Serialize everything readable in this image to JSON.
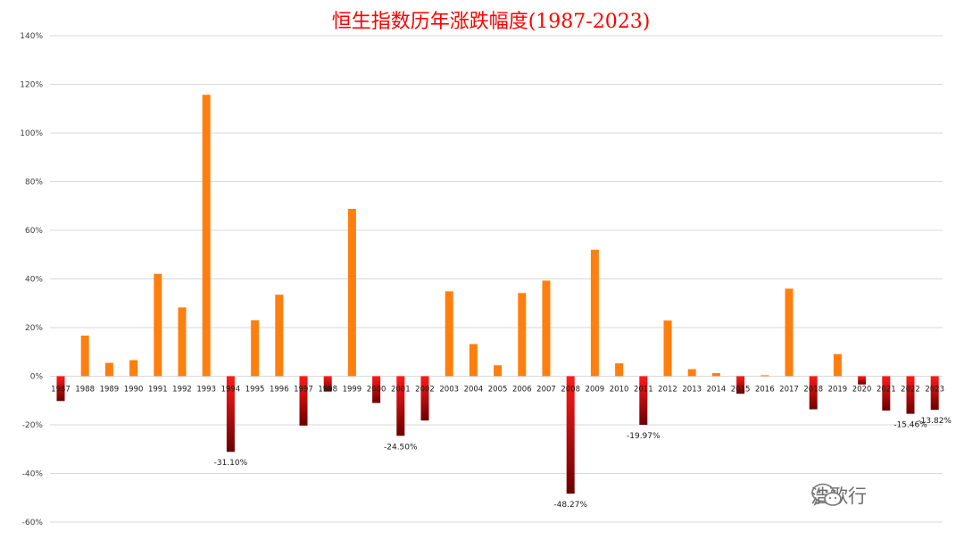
{
  "chart_data": {
    "type": "bar",
    "title": "恒生指数历年涨跌幅度(1987-2023)",
    "xlabel": "",
    "ylabel": "",
    "ylim": [
      -60,
      140
    ],
    "yticks": [
      140,
      120,
      100,
      80,
      60,
      40,
      20,
      0,
      -20,
      -40,
      -60
    ],
    "ytick_labels": [
      "140%",
      "120%",
      "100%",
      "80%",
      "60%",
      "40%",
      "20%",
      "0%",
      "-20%",
      "-40%",
      "-60%"
    ],
    "grid": true,
    "legend": "none",
    "categories": [
      "1987",
      "1988",
      "1989",
      "1990",
      "1991",
      "1992",
      "1993",
      "1994",
      "1995",
      "1996",
      "1997",
      "1998",
      "1999",
      "2000",
      "2001",
      "2002",
      "2003",
      "2004",
      "2005",
      "2006",
      "2007",
      "2008",
      "2009",
      "2010",
      "2011",
      "2012",
      "2013",
      "2014",
      "2015",
      "2016",
      "2017",
      "2018",
      "2019",
      "2020",
      "2021",
      "2022",
      "2023"
    ],
    "values": [
      -10.2,
      16.7,
      5.5,
      6.6,
      42.1,
      28.3,
      115.7,
      -31.1,
      23.0,
      33.5,
      -20.3,
      -6.3,
      68.8,
      -11.0,
      -24.5,
      -18.2,
      34.9,
      13.2,
      4.5,
      34.2,
      39.3,
      -48.27,
      52.0,
      5.3,
      -19.97,
      22.9,
      2.9,
      1.3,
      -7.2,
      0.4,
      36.0,
      -13.6,
      9.1,
      -3.4,
      -14.1,
      -15.46,
      -13.82
    ],
    "data_labels": [
      {
        "category": "1994",
        "text": "-31.10%"
      },
      {
        "category": "2001",
        "text": "-24.50%"
      },
      {
        "category": "2008",
        "text": "-48.27%"
      },
      {
        "category": "2011",
        "text": "-19.97%"
      },
      {
        "category": "2022",
        "text": "-15.46%"
      },
      {
        "category": "2023",
        "text": "-13.82%"
      }
    ],
    "colors": {
      "positive": "#ff7f0e",
      "negative_top": "#ff1a1a",
      "negative_bottom": "#6b0000",
      "grid": "#d9d9d9"
    }
  },
  "watermark": {
    "text": "浩歌行",
    "icon": "wechat-icon"
  }
}
